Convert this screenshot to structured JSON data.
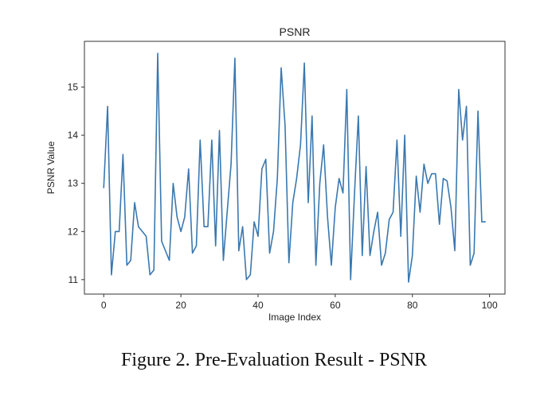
{
  "chart_data": {
    "type": "line",
    "title": "PSNR",
    "xlabel": "Image Index",
    "ylabel": "PSNR Value",
    "xlim": [
      -5,
      104
    ],
    "ylim": [
      10.7,
      15.95
    ],
    "xticks": [
      0,
      20,
      40,
      60,
      80,
      100
    ],
    "yticks": [
      11,
      12,
      13,
      14,
      15
    ],
    "grid": false,
    "line_color": "#3a78b0",
    "series": [
      {
        "x": [
          0,
          1,
          2,
          3,
          4,
          5,
          6,
          7,
          8,
          9,
          10,
          11,
          12,
          13,
          14,
          15,
          16,
          17,
          18,
          19,
          20,
          21,
          22,
          23,
          24,
          25,
          26,
          27,
          28,
          29,
          30,
          31,
          32,
          33,
          34,
          35,
          36,
          37,
          38,
          39,
          40,
          41,
          42,
          43,
          44,
          45,
          46,
          47,
          48,
          49,
          50,
          51,
          52,
          53,
          54,
          55,
          56,
          57,
          58,
          59,
          60,
          61,
          62,
          63,
          64,
          65,
          66,
          67,
          68,
          69,
          70,
          71,
          72,
          73,
          74,
          75,
          76,
          77,
          78,
          79,
          80,
          81,
          82,
          83,
          84,
          85,
          86,
          87,
          88,
          89,
          90,
          91,
          92,
          93,
          94,
          95,
          96,
          97,
          98,
          99
        ],
        "values": [
          12.9,
          14.6,
          11.1,
          12.0,
          12.0,
          13.6,
          11.3,
          11.4,
          12.6,
          12.1,
          12.0,
          11.9,
          11.1,
          11.2,
          15.7,
          11.8,
          11.6,
          11.4,
          13.0,
          12.3,
          12.0,
          12.3,
          13.3,
          11.55,
          11.7,
          13.9,
          12.1,
          12.1,
          13.9,
          11.7,
          14.1,
          11.4,
          12.4,
          13.4,
          15.6,
          11.6,
          12.1,
          11.0,
          11.1,
          12.2,
          11.9,
          13.3,
          13.5,
          11.55,
          12.0,
          13.1,
          15.4,
          14.2,
          11.35,
          12.6,
          13.1,
          13.8,
          15.5,
          12.6,
          14.4,
          11.3,
          13.0,
          13.8,
          12.3,
          11.3,
          12.5,
          13.1,
          12.8,
          14.95,
          11.0,
          12.8,
          14.4,
          11.5,
          13.35,
          11.5,
          12.0,
          12.4,
          11.3,
          11.55,
          12.25,
          12.4,
          13.9,
          11.9,
          14.0,
          10.95,
          11.5,
          13.15,
          12.4,
          13.4,
          13.0,
          13.2,
          13.2,
          12.15,
          13.1,
          13.05,
          12.5,
          11.6,
          14.95,
          13.9,
          14.6,
          11.3,
          11.55,
          14.5,
          12.2,
          12.2
        ]
      }
    ]
  },
  "caption": "Figure 2. Pre-Evaluation Result - PSNR"
}
